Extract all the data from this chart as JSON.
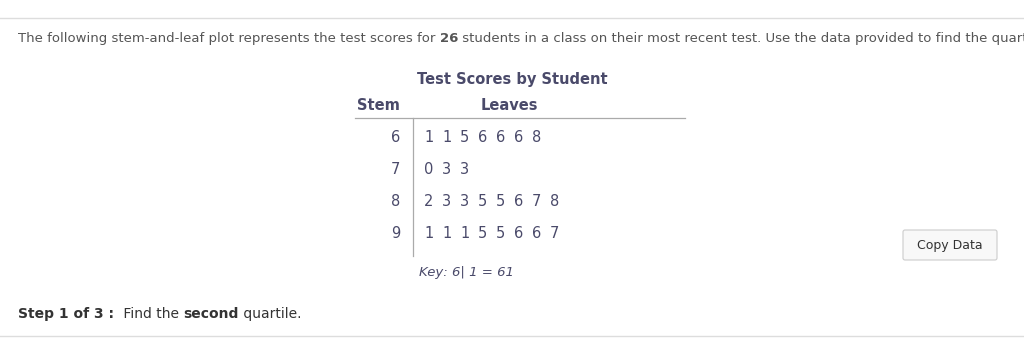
{
  "title": "Test Scores by Student",
  "header_stem": "Stem",
  "header_leaves": "Leaves",
  "rows": [
    {
      "stem": "6",
      "leaves": [
        "1",
        "1",
        "5",
        "6",
        "6",
        "6",
        "8"
      ]
    },
    {
      "stem": "7",
      "leaves": [
        "0",
        "3",
        "3"
      ]
    },
    {
      "stem": "8",
      "leaves": [
        "2",
        "3",
        "3",
        "5",
        "5",
        "6",
        "7",
        "8"
      ]
    },
    {
      "stem": "9",
      "leaves": [
        "1",
        "1",
        "1",
        "5",
        "5",
        "6",
        "6",
        "7"
      ]
    }
  ],
  "key_text": "Key: 6| 1 = 61",
  "intro_pre": "The following stem-and-leaf plot represents the test scores for ",
  "intro_bold": "26",
  "intro_post": " students in a class on their most recent test. Use the data provided to find the quartiles.",
  "copy_button_text": "Copy Data",
  "bg_color": "#ffffff",
  "text_color": "#4a4a6a",
  "intro_text_color": "#555555",
  "step_text_color": "#333333",
  "button_bg": "#f8f8f8",
  "button_border": "#cccccc",
  "font_size_intro": 9.5,
  "font_size_title": 10.5,
  "font_size_header": 10.5,
  "font_size_table": 10.5,
  "font_size_key": 9.5,
  "font_size_step": 10,
  "font_size_button": 9
}
